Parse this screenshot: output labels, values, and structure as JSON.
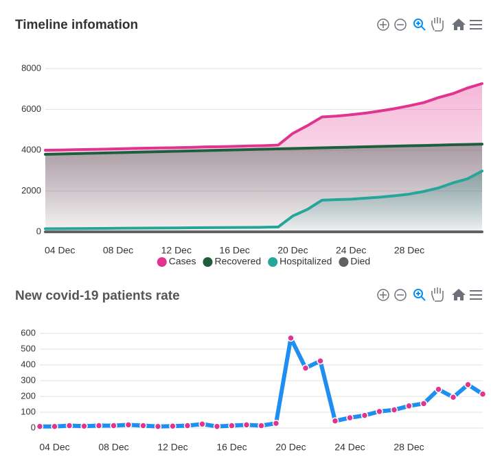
{
  "chart_data": [
    {
      "type": "line",
      "title": "Timeline infomation",
      "x": [
        "03 Dec",
        "04 Dec",
        "05 Dec",
        "06 Dec",
        "07 Dec",
        "08 Dec",
        "09 Dec",
        "10 Dec",
        "11 Dec",
        "12 Dec",
        "13 Dec",
        "14 Dec",
        "15 Dec",
        "16 Dec",
        "17 Dec",
        "18 Dec",
        "19 Dec",
        "20 Dec",
        "21 Dec",
        "22 Dec",
        "23 Dec",
        "24 Dec",
        "25 Dec",
        "26 Dec",
        "27 Dec",
        "28 Dec",
        "29 Dec",
        "30 Dec",
        "31 Dec",
        "01 Jan",
        "02 Jan"
      ],
      "xticks": [
        "04 Dec",
        "08 Dec",
        "12 Dec",
        "16 Dec",
        "20 Dec",
        "24 Dec",
        "28 Dec"
      ],
      "ylim": [
        0,
        8000
      ],
      "yticks": [
        0,
        2000,
        4000,
        6000,
        8000
      ],
      "grid": true,
      "area": true,
      "legend": "bottom",
      "series": [
        {
          "name": "Cases",
          "color": "#e0348f",
          "values": [
            4000,
            4010,
            4025,
            4037,
            4052,
            4067,
            4087,
            4102,
            4112,
            4124,
            4139,
            4164,
            4174,
            4189,
            4209,
            4224,
            4254,
            4824,
            5204,
            5629,
            5674,
            5739,
            5819,
            5924,
            6039,
            6179,
            6334,
            6579,
            6774,
            7049,
            7264
          ]
        },
        {
          "name": "Recovered",
          "color": "#1d5e3c",
          "values": [
            3800,
            3817,
            3833,
            3850,
            3867,
            3883,
            3900,
            3917,
            3933,
            3950,
            3967,
            3983,
            4000,
            4017,
            4033,
            4050,
            4067,
            4083,
            4100,
            4117,
            4133,
            4150,
            4167,
            4183,
            4200,
            4217,
            4233,
            4250,
            4267,
            4283,
            4300
          ]
        },
        {
          "name": "Hospitalized",
          "color": "#26a69a",
          "values": [
            150,
            155,
            160,
            165,
            170,
            175,
            180,
            185,
            190,
            195,
            200,
            205,
            210,
            215,
            220,
            225,
            240,
            780,
            1100,
            1550,
            1580,
            1600,
            1650,
            1700,
            1770,
            1850,
            1980,
            2150,
            2400,
            2600,
            2980
          ]
        },
        {
          "name": "Died",
          "color": "#616161",
          "values": [
            0,
            0,
            0,
            0,
            0,
            0,
            0,
            0,
            0,
            0,
            0,
            0,
            0,
            0,
            0,
            0,
            0,
            0,
            0,
            0,
            0,
            0,
            0,
            0,
            0,
            0,
            0,
            0,
            0,
            0,
            0
          ]
        }
      ]
    },
    {
      "type": "line",
      "title": "New covid-19 patients rate",
      "x": [
        "03 Dec",
        "04 Dec",
        "05 Dec",
        "06 Dec",
        "07 Dec",
        "08 Dec",
        "09 Dec",
        "10 Dec",
        "11 Dec",
        "12 Dec",
        "13 Dec",
        "14 Dec",
        "15 Dec",
        "16 Dec",
        "17 Dec",
        "18 Dec",
        "19 Dec",
        "20 Dec",
        "21 Dec",
        "22 Dec",
        "23 Dec",
        "24 Dec",
        "25 Dec",
        "26 Dec",
        "27 Dec",
        "28 Dec",
        "29 Dec",
        "30 Dec",
        "31 Dec",
        "01 Jan",
        "02 Jan"
      ],
      "xticks": [
        "04 Dec",
        "08 Dec",
        "12 Dec",
        "16 Dec",
        "20 Dec",
        "24 Dec",
        "28 Dec"
      ],
      "ylim": [
        0,
        600
      ],
      "yticks": [
        0,
        100,
        200,
        300,
        400,
        500,
        600
      ],
      "grid": true,
      "markers": true,
      "marker_color": "#e0348f",
      "series": [
        {
          "color": "#1e8ff0",
          "values": [
            10,
            10,
            15,
            12,
            15,
            15,
            20,
            15,
            10,
            12,
            15,
            25,
            10,
            15,
            20,
            15,
            30,
            570,
            380,
            425,
            45,
            65,
            80,
            105,
            115,
            140,
            155,
            245,
            195,
            275,
            215
          ]
        }
      ]
    }
  ]
}
